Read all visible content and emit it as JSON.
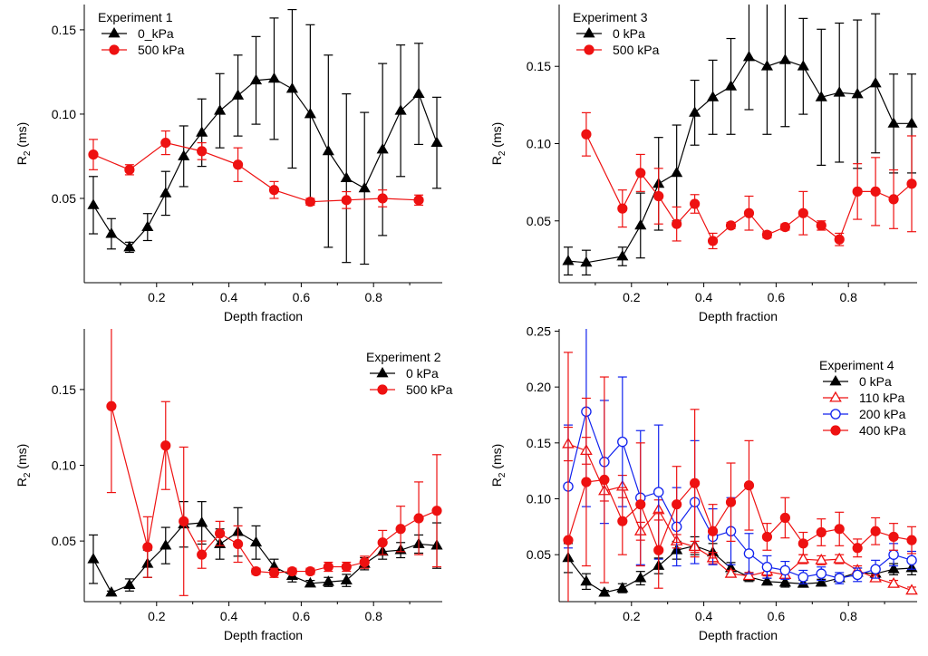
{
  "figure_colors": {
    "black": "#000000",
    "red": "#ee1111",
    "blue": "#1122ee"
  },
  "chart_data": [
    {
      "id": "p1",
      "type": "line",
      "title": "Experiment 1",
      "xlabel": "Depth fraction",
      "ylabel": "R",
      "ylabel_sub": "2",
      "ylabel_unit": " (ms)",
      "xlim": [
        0.0,
        0.99
      ],
      "ylim": [
        0.0,
        0.165
      ],
      "xticks": [
        {
          "v": 0.2,
          "label": "0.2"
        },
        {
          "v": 0.4,
          "label": "0.4"
        },
        {
          "v": 0.6,
          "label": "0.6"
        },
        {
          "v": 0.8,
          "label": "0.8"
        }
      ],
      "yticks": [
        {
          "v": 0.05,
          "label": "0.05"
        },
        {
          "v": 0.1,
          "label": "0.10"
        },
        {
          "v": 0.15,
          "label": "0.15"
        }
      ],
      "legend_pos": "top-left",
      "series": [
        {
          "name": "0_kPa",
          "color": "#000000",
          "marker": "triangle-filled",
          "x": [
            0.025,
            0.075,
            0.125,
            0.175,
            0.225,
            0.275,
            0.325,
            0.375,
            0.425,
            0.475,
            0.525,
            0.575,
            0.625,
            0.675,
            0.725,
            0.775,
            0.825,
            0.875,
            0.925,
            0.975
          ],
          "y": [
            0.046,
            0.029,
            0.021,
            0.033,
            0.053,
            0.075,
            0.089,
            0.102,
            0.111,
            0.12,
            0.121,
            0.115,
            0.1,
            0.078,
            0.062,
            0.056,
            0.079,
            0.102,
            0.112,
            0.083
          ],
          "err": [
            0.017,
            0.009,
            0.003,
            0.008,
            0.013,
            0.018,
            0.02,
            0.022,
            0.024,
            0.026,
            0.036,
            0.047,
            0.053,
            0.057,
            0.05,
            0.045,
            0.051,
            0.039,
            0.03,
            0.027
          ]
        },
        {
          "name": "500 kPa",
          "color": "#ee1111",
          "marker": "circle-filled",
          "x": [
            0.025,
            0.125,
            0.225,
            0.325,
            0.425,
            0.525,
            0.625,
            0.725,
            0.825,
            0.925
          ],
          "y": [
            0.076,
            0.067,
            0.083,
            0.078,
            0.07,
            0.055,
            0.048,
            0.049,
            0.05,
            0.049
          ],
          "err": [
            0.009,
            0.003,
            0.007,
            0.005,
            0.01,
            0.005,
            0.002,
            0.005,
            0.005,
            0.003
          ]
        }
      ]
    },
    {
      "id": "p2",
      "type": "line",
      "title": "Experiment 3",
      "xlabel": "Depth fraction",
      "ylabel": "R",
      "ylabel_sub": "2",
      "ylabel_unit": " (ms)",
      "xlim": [
        0.0,
        0.99
      ],
      "ylim": [
        0.01,
        0.19
      ],
      "xticks": [
        {
          "v": 0.2,
          "label": "0.2"
        },
        {
          "v": 0.4,
          "label": "0.4"
        },
        {
          "v": 0.6,
          "label": "0.6"
        },
        {
          "v": 0.8,
          "label": "0.8"
        }
      ],
      "yticks": [
        {
          "v": 0.05,
          "label": "0.05"
        },
        {
          "v": 0.1,
          "label": "0.10"
        },
        {
          "v": 0.15,
          "label": "0.15"
        }
      ],
      "legend_pos": "top-left",
      "series": [
        {
          "name": "0 kPa",
          "color": "#000000",
          "marker": "triangle-filled",
          "x": [
            0.025,
            0.075,
            0.175,
            0.225,
            0.275,
            0.325,
            0.375,
            0.425,
            0.475,
            0.525,
            0.575,
            0.625,
            0.675,
            0.725,
            0.775,
            0.825,
            0.875,
            0.925,
            0.975
          ],
          "y": [
            0.024,
            0.023,
            0.027,
            0.047,
            0.074,
            0.081,
            0.12,
            0.13,
            0.137,
            0.156,
            0.15,
            0.154,
            0.15,
            0.13,
            0.133,
            0.132,
            0.139,
            0.113,
            0.113
          ],
          "err": [
            0.009,
            0.008,
            0.006,
            0.021,
            0.03,
            0.031,
            0.021,
            0.024,
            0.031,
            0.034,
            0.044,
            0.043,
            0.031,
            0.044,
            0.045,
            0.048,
            0.045,
            0.032,
            0.032
          ]
        },
        {
          "name": "500 kPa",
          "color": "#ee1111",
          "marker": "circle-filled",
          "x": [
            0.075,
            0.175,
            0.225,
            0.275,
            0.325,
            0.375,
            0.425,
            0.475,
            0.525,
            0.575,
            0.625,
            0.675,
            0.725,
            0.775,
            0.825,
            0.875,
            0.925,
            0.975
          ],
          "y": [
            0.106,
            0.058,
            0.081,
            0.066,
            0.048,
            0.061,
            0.037,
            0.047,
            0.055,
            0.041,
            0.046,
            0.055,
            0.047,
            0.038,
            0.069,
            0.069,
            0.064,
            0.074
          ],
          "err": [
            0.014,
            0.012,
            0.012,
            0.018,
            0.011,
            0.006,
            0.005,
            0.002,
            0.011,
            0.002,
            0.002,
            0.014,
            0.003,
            0.004,
            0.018,
            0.022,
            0.019,
            0.031
          ]
        }
      ]
    },
    {
      "id": "p3",
      "type": "line",
      "title": "Experiment 2",
      "xlabel": "Depth fraction",
      "ylabel": "R",
      "ylabel_sub": "2",
      "ylabel_unit": " (ms)",
      "xlim": [
        0.0,
        0.99
      ],
      "ylim": [
        0.01,
        0.19
      ],
      "xticks": [
        {
          "v": 0.2,
          "label": "0.2"
        },
        {
          "v": 0.4,
          "label": "0.4"
        },
        {
          "v": 0.6,
          "label": "0.6"
        },
        {
          "v": 0.8,
          "label": "0.8"
        }
      ],
      "yticks": [
        {
          "v": 0.05,
          "label": "0.05"
        },
        {
          "v": 0.1,
          "label": "0.10"
        },
        {
          "v": 0.15,
          "label": "0.15"
        }
      ],
      "legend_pos": "top-right",
      "series": [
        {
          "name": "0 kPa",
          "color": "#000000",
          "marker": "triangle-filled",
          "x": [
            0.025,
            0.075,
            0.125,
            0.175,
            0.225,
            0.275,
            0.325,
            0.375,
            0.425,
            0.475,
            0.525,
            0.575,
            0.625,
            0.675,
            0.725,
            0.775,
            0.825,
            0.875,
            0.925,
            0.975
          ],
          "y": [
            0.038,
            0.016,
            0.021,
            0.035,
            0.047,
            0.061,
            0.062,
            0.048,
            0.056,
            0.049,
            0.033,
            0.027,
            0.022,
            0.023,
            0.024,
            0.035,
            0.043,
            0.044,
            0.048,
            0.047
          ],
          "err": [
            0.016,
            0.001,
            0.004,
            0.009,
            0.012,
            0.015,
            0.014,
            0.01,
            0.016,
            0.011,
            0.005,
            0.004,
            0.002,
            0.003,
            0.004,
            0.004,
            0.005,
            0.005,
            0.006,
            0.015
          ]
        },
        {
          "name": "500 kPa",
          "color": "#ee1111",
          "marker": "circle-filled",
          "x": [
            0.075,
            0.175,
            0.225,
            0.275,
            0.325,
            0.375,
            0.425,
            0.475,
            0.525,
            0.575,
            0.625,
            0.675,
            0.725,
            0.775,
            0.825,
            0.875,
            0.925,
            0.975
          ],
          "y": [
            0.139,
            0.046,
            0.113,
            0.063,
            0.041,
            0.055,
            0.048,
            0.03,
            0.029,
            0.03,
            0.03,
            0.033,
            0.033,
            0.036,
            0.049,
            0.058,
            0.065,
            0.07
          ],
          "err": [
            0.057,
            0.02,
            0.029,
            0.049,
            0.009,
            0.008,
            0.012,
            0.002,
            0.003,
            0.002,
            0.002,
            0.003,
            0.003,
            0.004,
            0.008,
            0.015,
            0.024,
            0.037
          ]
        }
      ]
    },
    {
      "id": "p4",
      "type": "line",
      "title": "Experiment 4",
      "xlabel": "Depth fraction",
      "ylabel": "R",
      "ylabel_sub": "2",
      "ylabel_unit": " (ms)",
      "xlim": [
        0.0,
        0.99
      ],
      "ylim": [
        0.008,
        0.252
      ],
      "xticks": [
        {
          "v": 0.2,
          "label": "0.2"
        },
        {
          "v": 0.4,
          "label": "0.4"
        },
        {
          "v": 0.6,
          "label": "0.6"
        },
        {
          "v": 0.8,
          "label": "0.8"
        }
      ],
      "yticks": [
        {
          "v": 0.05,
          "label": "0.05"
        },
        {
          "v": 0.1,
          "label": "0.10"
        },
        {
          "v": 0.15,
          "label": "0.15"
        },
        {
          "v": 0.2,
          "label": "0.20"
        },
        {
          "v": 0.25,
          "label": "0.25"
        }
      ],
      "legend_pos": "top-right",
      "series": [
        {
          "name": "0 kPa",
          "color": "#000000",
          "marker": "triangle-filled",
          "x": [
            0.025,
            0.075,
            0.125,
            0.175,
            0.225,
            0.275,
            0.325,
            0.375,
            0.425,
            0.475,
            0.525,
            0.575,
            0.625,
            0.675,
            0.725,
            0.775,
            0.825,
            0.875,
            0.925,
            0.975
          ],
          "y": [
            0.047,
            0.026,
            0.016,
            0.02,
            0.029,
            0.04,
            0.054,
            0.058,
            0.052,
            0.038,
            0.03,
            0.026,
            0.025,
            0.024,
            0.025,
            0.029,
            0.034,
            0.033,
            0.037,
            0.038
          ],
          "err": [
            0.013,
            0.007,
            0.002,
            0.004,
            0.006,
            0.007,
            0.008,
            0.008,
            0.008,
            0.005,
            0.004,
            0.003,
            0.004,
            0.003,
            0.003,
            0.003,
            0.004,
            0.005,
            0.005,
            0.006
          ]
        },
        {
          "name": "110 kPa",
          "color": "#ee1111",
          "marker": "triangle-open",
          "x": [
            0.025,
            0.075,
            0.125,
            0.175,
            0.225,
            0.275,
            0.325,
            0.375,
            0.425,
            0.475,
            0.525,
            0.575,
            0.625,
            0.675,
            0.725,
            0.775,
            0.825,
            0.875,
            0.925,
            0.975
          ],
          "y": [
            0.149,
            0.143,
            0.107,
            0.111,
            0.071,
            0.09,
            0.062,
            0.057,
            0.047,
            0.033,
            0.031,
            0.035,
            0.032,
            0.046,
            0.045,
            0.046,
            0.036,
            0.029,
            0.024,
            0.018
          ],
          "err": [
            0.015,
            0.012,
            0.009,
            0.01,
            0.008,
            0.009,
            0.006,
            0.005,
            0.005,
            0.003,
            0.003,
            0.004,
            0.003,
            0.004,
            0.004,
            0.004,
            0.004,
            0.003,
            0.003,
            0.003
          ]
        },
        {
          "name": "200 kPa",
          "color": "#1122ee",
          "marker": "circle-open",
          "x": [
            0.025,
            0.075,
            0.125,
            0.175,
            0.225,
            0.275,
            0.325,
            0.375,
            0.425,
            0.475,
            0.525,
            0.575,
            0.625,
            0.675,
            0.725,
            0.775,
            0.825,
            0.875,
            0.925,
            0.975
          ],
          "y": [
            0.111,
            0.178,
            0.133,
            0.151,
            0.101,
            0.106,
            0.075,
            0.097,
            0.066,
            0.071,
            0.051,
            0.039,
            0.036,
            0.03,
            0.033,
            0.029,
            0.032,
            0.037,
            0.05,
            0.045
          ],
          "err": [
            0.055,
            0.085,
            0.055,
            0.058,
            0.06,
            0.06,
            0.035,
            0.055,
            0.025,
            0.03,
            0.018,
            0.01,
            0.008,
            0.006,
            0.006,
            0.005,
            0.006,
            0.008,
            0.01,
            0.008
          ]
        },
        {
          "name": "400 kPa",
          "color": "#ee1111",
          "marker": "circle-filled",
          "x": [
            0.025,
            0.075,
            0.125,
            0.175,
            0.225,
            0.275,
            0.325,
            0.375,
            0.425,
            0.475,
            0.525,
            0.575,
            0.625,
            0.675,
            0.725,
            0.775,
            0.825,
            0.875,
            0.925,
            0.975
          ],
          "y": [
            0.063,
            0.115,
            0.117,
            0.08,
            0.095,
            0.054,
            0.095,
            0.114,
            0.071,
            0.097,
            0.112,
            0.066,
            0.083,
            0.06,
            0.07,
            0.073,
            0.056,
            0.071,
            0.066,
            0.063
          ],
          "err": [
            0.168,
            0.075,
            0.092,
            0.03,
            0.055,
            0.034,
            0.034,
            0.066,
            0.024,
            0.035,
            0.04,
            0.012,
            0.018,
            0.01,
            0.012,
            0.015,
            0.008,
            0.012,
            0.012,
            0.012
          ]
        }
      ]
    }
  ]
}
